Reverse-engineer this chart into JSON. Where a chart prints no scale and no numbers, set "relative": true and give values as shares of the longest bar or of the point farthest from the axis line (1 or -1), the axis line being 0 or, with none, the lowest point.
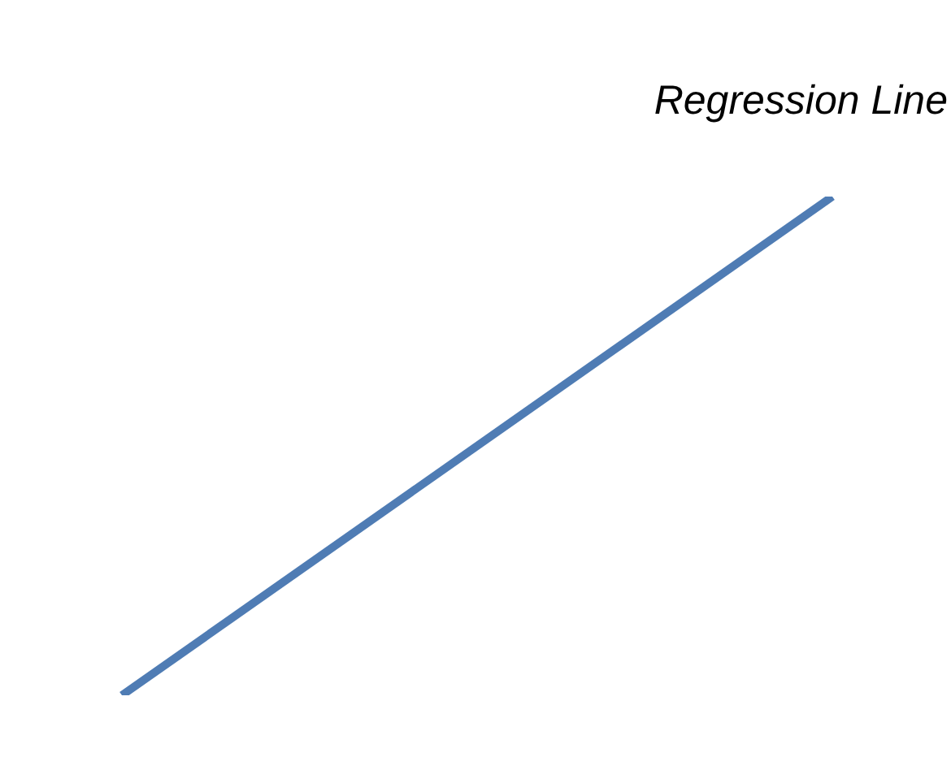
{
  "chart_data": {
    "type": "line",
    "title": "Regression Line",
    "relative": true,
    "categories": [
      null,
      null
    ],
    "series": [
      {
        "color": "#4f7cb4",
        "values": [
          0,
          1
        ]
      }
    ],
    "tick_labels": false,
    "grid": false,
    "legend": false,
    "marker": "none",
    "line_style": "solid"
  }
}
